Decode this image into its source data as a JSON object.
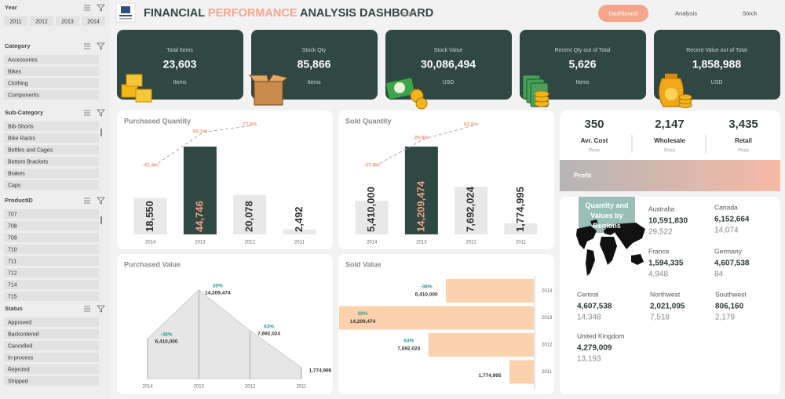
{
  "header": {
    "title_start": "FINANCIAL ",
    "title_highlight": "PERFORMANCE",
    "title_end": " ANALYSIS DASHBOARD",
    "year": "2026",
    "nav": [
      "Dashboard",
      "Analysis",
      "Stock"
    ]
  },
  "filters": [
    {
      "title": "Year",
      "items": [
        "2011",
        "2012",
        "2013",
        "2014"
      ]
    },
    {
      "title": "Category",
      "items": [
        "Accessories",
        "Bikes",
        "Clothing",
        "Components"
      ]
    },
    {
      "title": "Sub-Category",
      "items": [
        "Bib-Shorts",
        "Bike Racks",
        "Bottles and Cages",
        "Bottom Brackets",
        "Brakes",
        "Caps"
      ]
    },
    {
      "title": "ProductID",
      "items": [
        "707",
        "708",
        "709",
        "710",
        "711",
        "712",
        "714",
        "715"
      ]
    },
    {
      "title": "Status",
      "items": [
        "Approved",
        "Backordered",
        "Cancelled",
        "In process",
        "Rejected",
        "Shipped"
      ]
    }
  ],
  "kpis": [
    {
      "label": "Total Items",
      "value": "23,603",
      "unit": "Items"
    },
    {
      "label": "Stock Qty",
      "value": "85,866",
      "unit": "Items"
    },
    {
      "label": "Stock Value",
      "value": "30,086,494",
      "unit": "USD"
    },
    {
      "label": "Recent Qty out of Total",
      "value": "5,626",
      "unit": "Items"
    },
    {
      "label": "Recent Value out of Total",
      "value": "1,858,988",
      "unit": "USD"
    }
  ],
  "prices": [
    {
      "value": "350",
      "label": "Avr. Cost",
      "sub": "Price"
    },
    {
      "value": "2,147",
      "label": "Wholesale",
      "sub": "Price"
    },
    {
      "value": "3,435",
      "label": "Retail",
      "sub": "Price"
    }
  ],
  "profit": "Profit",
  "regions": {
    "title": "Quantity and Values by Regions",
    "items": [
      {
        "name": "Australia",
        "value": "10,591,830",
        "qty": "29,522"
      },
      {
        "name": "Canada",
        "value": "6,152,664",
        "qty": "14,074"
      },
      {
        "name": "France",
        "value": "1,594,335",
        "qty": "4,948"
      },
      {
        "name": "Germany",
        "value": "4,607,538",
        "qty": "84"
      },
      {
        "name": "Central",
        "value": "4,607,538",
        "qty": "14,348"
      },
      {
        "name": "Northwest",
        "value": "2,021,095",
        "qty": "7,518"
      },
      {
        "name": "Southwest",
        "value": "806,160",
        "qty": "2,179"
      },
      {
        "name": "United Kingdom",
        "value": "4,279,009",
        "qty": "13,193"
      }
    ]
  },
  "chart_data": [
    {
      "type": "bar",
      "title": "Purchased Quantity",
      "categories": [
        "2014",
        "2013",
        "2012",
        "2011"
      ],
      "values": [
        18550,
        44746,
        20078,
        2492
      ],
      "value_labels": [
        "18,550",
        "44,746",
        "20,078",
        "2,492"
      ],
      "colors": [
        "#e8e8e8",
        "#2f4844",
        "#e8e8e8",
        "#e8e8e8"
      ],
      "value_label_colors": [
        "#333333",
        "#f0a080",
        "#333333",
        "#333333"
      ],
      "changes": [
        -41.4,
        58.1,
        77.9,
        null
      ],
      "change_labels": [
        "-41.4%",
        "58.1%",
        "77.9%",
        null
      ],
      "change_color": "#f0a080"
    },
    {
      "type": "bar",
      "title": "Sold Quantity",
      "categories": [
        "2014",
        "2013",
        "2012",
        "2011"
      ],
      "values": [
        5410000,
        14209474,
        7692024,
        1774995
      ],
      "value_labels": [
        "5,410,000",
        "14,209,474",
        "7,692,024",
        "1,774,995"
      ],
      "colors": [
        "#e8e8e8",
        "#2f4844",
        "#e8e8e8",
        "#e8e8e8"
      ],
      "value_label_colors": [
        "#333333",
        "#f0a080",
        "#333333",
        "#333333"
      ],
      "changes": [
        -37.8,
        29.8,
        62.5,
        null
      ],
      "change_labels": [
        "-37.8%",
        "29.8%",
        "62.5%",
        null
      ],
      "change_color": "#f0a080"
    },
    {
      "type": "area",
      "title": "Purchased Value",
      "categories": [
        "2014",
        "2013",
        "2012",
        "2011"
      ],
      "values": [
        6410000,
        14209474,
        7692024,
        1774996
      ],
      "value_labels": [
        "6,410,000",
        "14,209,474",
        "7,692,024",
        "1,774,996"
      ],
      "color": "#e6e6e6",
      "changes": [
        -38,
        30,
        63,
        null
      ],
      "change_labels": [
        "-38%",
        "30%",
        "63%",
        null
      ],
      "change_color": "#2a9d8f"
    },
    {
      "type": "barh",
      "title": "Sold Value",
      "categories": [
        "2014",
        "2013",
        "2012",
        "2011"
      ],
      "values": [
        6410000,
        14209474,
        7692024,
        1774995
      ],
      "value_labels": [
        "6,410,000",
        "14,209,474",
        "7,692,024",
        "1,774,995"
      ],
      "color": "#fcd1ad",
      "changes": [
        -38,
        30,
        63,
        null
      ],
      "change_labels": [
        "-38%",
        "30%",
        "63%",
        null
      ],
      "change_color": "#2a9d8f"
    }
  ]
}
